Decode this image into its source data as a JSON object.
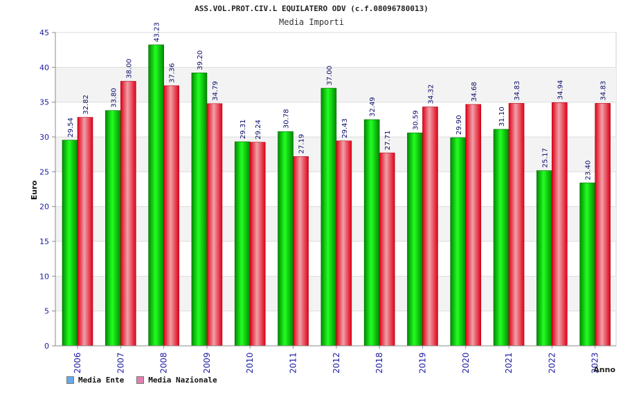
{
  "title": "ASS.VOL.PROT.CIV.L EQUILATERO ODV (c.f.08096780013)",
  "subtitle": "Media Importi",
  "colors": {
    "ente": "#66aaee",
    "nazionale": "#e080b0"
  },
  "legend": {
    "ente_label": "Media Ente",
    "nazionale_label": "Media Nazionale"
  },
  "chart_data": {
    "type": "bar",
    "title": "ASS.VOL.PROT.CIV.L EQUILATERO ODV (c.f.08096780013)",
    "subtitle": "Media Importi",
    "xlabel": "Anno",
    "ylabel": "Euro",
    "ylim": [
      0,
      45
    ],
    "yticks": [
      0,
      5,
      10,
      15,
      20,
      25,
      30,
      35,
      40,
      45
    ],
    "categories": [
      "2006",
      "2007",
      "2008",
      "2009",
      "2010",
      "2011",
      "2012",
      "2018",
      "2019",
      "2020",
      "2021",
      "2022",
      "2023"
    ],
    "series": [
      {
        "name": "Media Ente",
        "values": [
          29.54,
          33.8,
          43.23,
          39.2,
          29.31,
          30.78,
          37.0,
          32.49,
          30.59,
          29.9,
          31.1,
          25.17,
          23.4
        ]
      },
      {
        "name": "Media Nazionale",
        "values": [
          32.82,
          38.0,
          37.36,
          34.79,
          29.24,
          27.19,
          29.43,
          27.71,
          34.32,
          34.68,
          34.83,
          34.94,
          34.83
        ]
      }
    ],
    "data_labels": {
      "Media Ente": [
        "29.54",
        "33.80",
        "43.23",
        "39.20",
        "29.31",
        "30.78",
        "37.00",
        "32.49",
        "30.59",
        "29.90",
        "31.10",
        "25.17",
        "23.40"
      ],
      "Media Nazionale": [
        "32.82",
        "38.00",
        "37.36",
        "34.79",
        "29.24",
        "27.19",
        "29.43",
        "27.71",
        "34.32",
        "34.68",
        "34.83",
        "34.94",
        "34.83"
      ]
    },
    "grid": true,
    "legend_position": "bottom-left"
  }
}
